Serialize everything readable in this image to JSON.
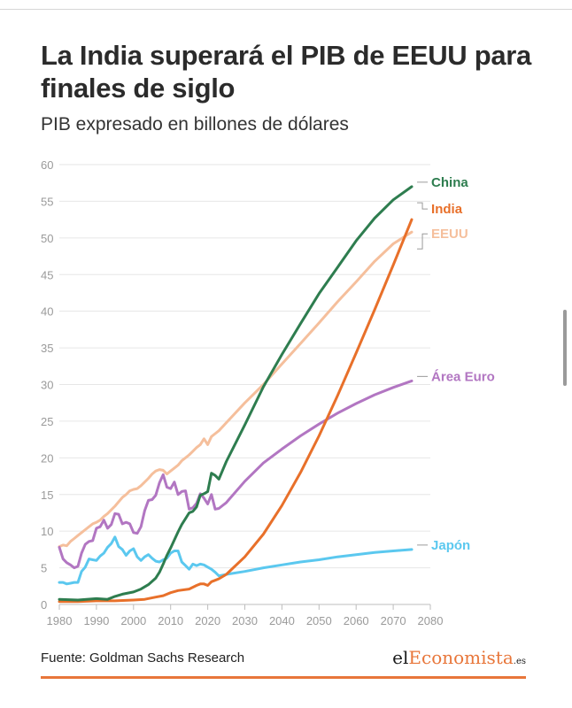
{
  "title": "La India superará el PIB de EEUU para finales de siglo",
  "subtitle": "PIB expresado en billones de dólares",
  "source": "Fuente: Goldman Sachs Research",
  "logo": {
    "part1": "el",
    "part2": "Economista",
    "part3": ".es"
  },
  "colors": {
    "China": "#2e7d4f",
    "India": "#e8702a",
    "EEUU": "#f5bf9c",
    "Área Euro": "#b276c2",
    "Japón": "#5bc8ef",
    "accent": "#e8763a"
  },
  "chart_data": {
    "type": "line",
    "title": "",
    "xlabel": "",
    "ylabel": "",
    "xlim": [
      1980,
      2080
    ],
    "ylim": [
      0,
      60
    ],
    "xticks": [
      1980,
      1990,
      2000,
      2010,
      2020,
      2030,
      2040,
      2050,
      2060,
      2070,
      2080
    ],
    "yticks": [
      0,
      5,
      10,
      15,
      20,
      25,
      30,
      35,
      40,
      45,
      50,
      55,
      60
    ],
    "grid": true,
    "legend": "direct labels at line ends",
    "series": [
      {
        "name": "EEUU",
        "x": [
          1980,
          1981,
          1982,
          1983,
          1984,
          1985,
          1986,
          1987,
          1988,
          1989,
          1990,
          1991,
          1992,
          1993,
          1994,
          1995,
          1996,
          1997,
          1998,
          1999,
          2000,
          2001,
          2002,
          2003,
          2004,
          2005,
          2006,
          2007,
          2008,
          2009,
          2010,
          2011,
          2012,
          2013,
          2014,
          2015,
          2016,
          2017,
          2018,
          2019,
          2020,
          2021,
          2022,
          2023,
          2025,
          2030,
          2035,
          2040,
          2045,
          2050,
          2055,
          2060,
          2065,
          2070,
          2075
        ],
        "y": [
          7.9,
          8.1,
          8.0,
          8.6,
          9.0,
          9.4,
          9.8,
          10.2,
          10.6,
          11.0,
          11.2,
          11.5,
          12.0,
          12.4,
          12.9,
          13.4,
          14.0,
          14.6,
          15.0,
          15.5,
          15.7,
          15.8,
          16.2,
          16.7,
          17.2,
          17.8,
          18.2,
          18.4,
          18.3,
          17.8,
          18.2,
          18.6,
          19.0,
          19.6,
          20.0,
          20.4,
          20.9,
          21.4,
          21.8,
          22.6,
          21.8,
          22.9,
          23.3,
          23.7,
          24.8,
          27.5,
          30.0,
          32.8,
          35.6,
          38.4,
          41.3,
          44.0,
          46.8,
          49.2,
          50.8
        ]
      },
      {
        "name": "China",
        "x": [
          1980,
          1985,
          1990,
          1993,
          1995,
          1997,
          2000,
          2002,
          2004,
          2006,
          2007,
          2008,
          2009,
          2010,
          2011,
          2012,
          2013,
          2014,
          2015,
          2016,
          2017,
          2018,
          2019,
          2020,
          2021,
          2022,
          2023,
          2025,
          2030,
          2035,
          2040,
          2045,
          2050,
          2055,
          2060,
          2065,
          2070,
          2075
        ],
        "y": [
          0.7,
          0.6,
          0.8,
          0.7,
          1.1,
          1.4,
          1.7,
          2.1,
          2.7,
          3.6,
          4.4,
          5.5,
          6.7,
          7.7,
          8.8,
          9.9,
          10.9,
          11.7,
          12.5,
          12.7,
          13.3,
          14.9,
          15.1,
          15.4,
          17.9,
          17.6,
          17.1,
          19.5,
          24.5,
          29.7,
          34.1,
          38.3,
          42.4,
          46.0,
          49.6,
          52.7,
          55.2,
          57.0
        ]
      },
      {
        "name": "India",
        "x": [
          1980,
          1985,
          1990,
          1995,
          2000,
          2003,
          2006,
          2008,
          2010,
          2012,
          2015,
          2017,
          2018,
          2019,
          2020,
          2021,
          2022,
          2023,
          2025,
          2030,
          2035,
          2040,
          2045,
          2050,
          2055,
          2060,
          2065,
          2070,
          2075
        ],
        "y": [
          0.4,
          0.4,
          0.5,
          0.5,
          0.6,
          0.7,
          1.0,
          1.2,
          1.6,
          1.9,
          2.1,
          2.6,
          2.8,
          2.8,
          2.6,
          3.1,
          3.3,
          3.5,
          4.1,
          6.5,
          9.6,
          13.5,
          18.0,
          23.0,
          28.5,
          34.3,
          40.2,
          46.3,
          52.5
        ]
      },
      {
        "name": "Área Euro",
        "x": [
          1980,
          1981,
          1982,
          1983,
          1984,
          1985,
          1986,
          1987,
          1988,
          1989,
          1990,
          1991,
          1992,
          1993,
          1994,
          1995,
          1996,
          1997,
          1998,
          1999,
          2000,
          2001,
          2002,
          2003,
          2004,
          2005,
          2006,
          2007,
          2008,
          2009,
          2010,
          2011,
          2012,
          2013,
          2014,
          2015,
          2016,
          2017,
          2018,
          2019,
          2020,
          2021,
          2022,
          2023,
          2025,
          2030,
          2035,
          2040,
          2045,
          2050,
          2055,
          2060,
          2065,
          2070,
          2075
        ],
        "y": [
          7.8,
          6.2,
          5.7,
          5.4,
          5.0,
          5.2,
          7.0,
          8.2,
          8.6,
          8.7,
          10.4,
          10.6,
          11.5,
          10.4,
          10.9,
          12.4,
          12.3,
          11.0,
          11.2,
          11.0,
          9.8,
          9.7,
          10.6,
          12.8,
          14.2,
          14.3,
          14.9,
          16.6,
          17.7,
          16.0,
          15.8,
          16.7,
          15.0,
          15.4,
          15.5,
          13.0,
          13.2,
          13.8,
          15.1,
          14.5,
          13.7,
          15.0,
          13.0,
          13.1,
          13.9,
          16.8,
          19.3,
          21.2,
          23.0,
          24.6,
          26.1,
          27.4,
          28.6,
          29.6,
          30.5
        ]
      },
      {
        "name": "Japón",
        "x": [
          1980,
          1981,
          1982,
          1983,
          1984,
          1985,
          1986,
          1987,
          1988,
          1989,
          1990,
          1991,
          1992,
          1993,
          1994,
          1995,
          1996,
          1997,
          1998,
          1999,
          2000,
          2001,
          2002,
          2003,
          2004,
          2005,
          2006,
          2007,
          2008,
          2009,
          2010,
          2011,
          2012,
          2013,
          2014,
          2015,
          2016,
          2017,
          2018,
          2019,
          2020,
          2021,
          2022,
          2023,
          2025,
          2030,
          2035,
          2040,
          2045,
          2050,
          2055,
          2060,
          2065,
          2070,
          2075
        ],
        "y": [
          3.0,
          3.0,
          2.8,
          2.9,
          3.0,
          3.0,
          4.5,
          5.1,
          6.2,
          6.1,
          6.0,
          6.6,
          7.0,
          7.8,
          8.3,
          9.2,
          7.9,
          7.5,
          6.7,
          7.3,
          7.6,
          6.5,
          6.0,
          6.5,
          6.8,
          6.3,
          5.9,
          5.8,
          6.1,
          6.3,
          7.0,
          7.3,
          7.3,
          5.8,
          5.3,
          4.8,
          5.5,
          5.3,
          5.5,
          5.4,
          5.1,
          4.8,
          4.4,
          3.9,
          4.1,
          4.5,
          5.0,
          5.4,
          5.8,
          6.1,
          6.5,
          6.8,
          7.1,
          7.3,
          7.5
        ]
      }
    ]
  }
}
